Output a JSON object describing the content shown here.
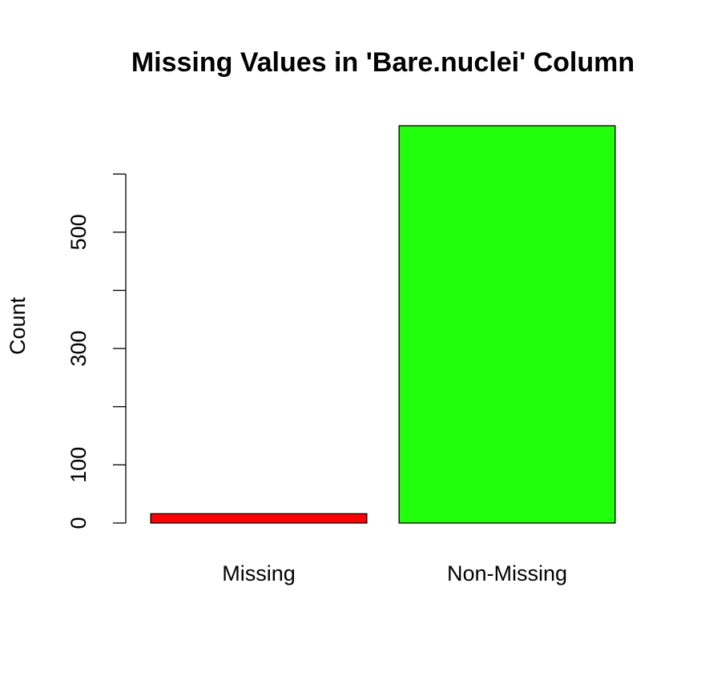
{
  "chart_data": {
    "type": "bar",
    "title": "Missing Values in 'Bare.nuclei' Column",
    "ylabel": "Count",
    "categories": [
      "Missing",
      "Non-Missing"
    ],
    "values": [
      16,
      683
    ],
    "colors": [
      "#ff0000",
      "#22ff0d"
    ],
    "ylim": [
      0,
      683
    ],
    "yticks": [
      0,
      100,
      {
        "value": 200,
        "label": null
      },
      300,
      {
        "value": 400,
        "label": null
      },
      500,
      {
        "value": 600,
        "label": null
      }
    ]
  }
}
